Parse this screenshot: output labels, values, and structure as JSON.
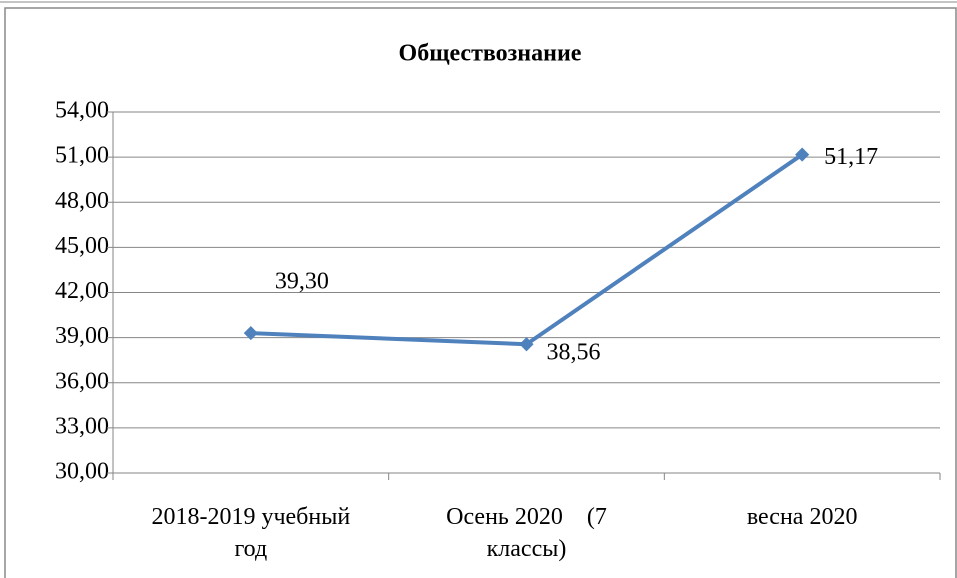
{
  "chart_data": {
    "type": "line",
    "title": "Обществознание",
    "categories": [
      "2018-2019 учебный год",
      "Осень 2020    (7 классы)",
      "весна 2020"
    ],
    "series": [
      {
        "color": "#4f81bd",
        "values": [
          39.3,
          38.56,
          51.17
        ],
        "value_labels": [
          "39,30",
          "38,56",
          "51,17"
        ]
      }
    ],
    "ylim": [
      30,
      54
    ],
    "yticks": [
      {
        "value": 30,
        "label": "30,00"
      },
      {
        "value": 33,
        "label": "33,00"
      },
      {
        "value": 36,
        "label": "36,00"
      },
      {
        "value": 39,
        "label": "39,00"
      },
      {
        "value": 42,
        "label": "42,00"
      },
      {
        "value": 45,
        "label": "45,00"
      },
      {
        "value": 48,
        "label": "48,00"
      },
      {
        "value": 51,
        "label": "51,00"
      },
      {
        "value": 54,
        "label": "54,00"
      }
    ],
    "grid": true
  }
}
